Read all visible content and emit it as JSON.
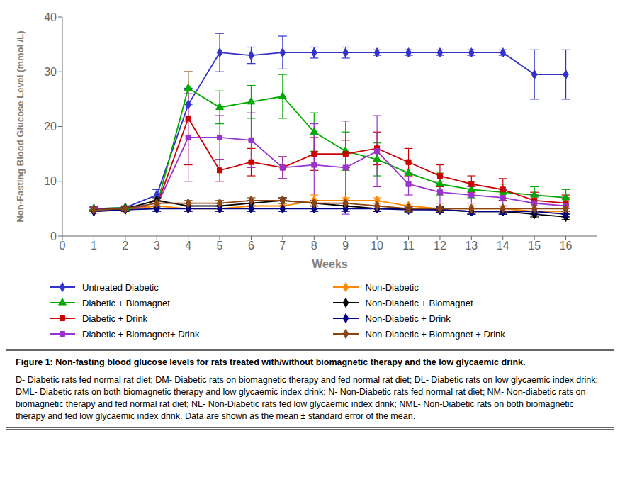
{
  "chart_data": {
    "type": "line",
    "title": "Figure 1: Non-fasting blood glucose levels for rats treated with/without biomagnetic therapy and the low glycaemic drink.",
    "annotations": [
      " D- Diabetic rats fed normal rat diet; DM- Diabetic rats on biomagnetic therapy and fed normal rat diet; DL- Diabetic rats on low glycaemic index drink; DML- Diabetic rats on both biomagnetic therapy and low glycaemic index drink; N- Non-Diabetic rats fed normal rat diet; NM- Non-diabetic rats on biomagnetic therapy and fed normal rat diet; NL- Non-Diabetic rats fed low glycaemic index drink; NML- Non-Diabetic rats on both biomagnetic therapy and fed low glycaemic index drink. Data are shown as the mean ± standard error of the mean."
    ],
    "x_label": "Weeks",
    "y_label": "Non-Fasting Blood Glucose Level (mmol /L)",
    "x": [
      1,
      2,
      3,
      4,
      5,
      6,
      7,
      8,
      9,
      10,
      11,
      12,
      13,
      14,
      15,
      16
    ],
    "xlim": [
      0,
      17
    ],
    "xticks": [
      0,
      1,
      2,
      3,
      4,
      5,
      6,
      7,
      8,
      9,
      10,
      11,
      12,
      13,
      14,
      15,
      16
    ],
    "ylim": [
      0,
      40
    ],
    "yticks": [
      0,
      10,
      20,
      30,
      40
    ],
    "grid": false,
    "series": [
      {
        "name": "Untreated Diabetic",
        "color": "#3333cc",
        "marker": "diamond",
        "values": [
          5.0,
          5.2,
          7.5,
          24.0,
          33.5,
          33.0,
          33.5,
          33.5,
          33.5,
          33.5,
          33.5,
          33.5,
          33.5,
          33.5,
          29.5,
          29.5
        ],
        "yerr": [
          0.3,
          0.3,
          1.0,
          3.0,
          3.5,
          1.5,
          3.0,
          1.0,
          1.0,
          0.5,
          0.5,
          0.5,
          0.5,
          0.5,
          4.5,
          4.5
        ]
      },
      {
        "name": "Diabetic + Biomagnet",
        "color": "#00aa00",
        "marker": "triangle",
        "values": [
          5.0,
          5.2,
          5.5,
          27.0,
          23.5,
          24.5,
          25.5,
          19.0,
          15.5,
          14.0,
          11.5,
          9.5,
          8.5,
          8.0,
          7.5,
          7.0
        ],
        "yerr": [
          0.3,
          0.3,
          0.5,
          3.0,
          3.0,
          3.0,
          4.0,
          3.5,
          3.5,
          3.0,
          2.0,
          2.0,
          1.5,
          1.5,
          1.5,
          1.5
        ]
      },
      {
        "name": "Diabetic + Drink",
        "color": "#cc0000",
        "marker": "square",
        "values": [
          5.0,
          5.0,
          5.5,
          21.5,
          12.0,
          13.5,
          12.5,
          15.0,
          15.0,
          16.0,
          13.5,
          11.0,
          9.5,
          8.5,
          6.5,
          6.0
        ],
        "yerr": [
          0.3,
          0.3,
          0.5,
          8.5,
          2.0,
          2.5,
          2.0,
          3.0,
          2.5,
          3.0,
          2.5,
          2.0,
          1.5,
          2.0,
          1.5,
          1.5
        ]
      },
      {
        "name": "Diabetic + Biomagnet+ Drink",
        "color": "#9933cc",
        "marker": "square",
        "values": [
          5.0,
          5.0,
          5.5,
          18.0,
          18.0,
          17.5,
          12.5,
          13.0,
          12.5,
          15.5,
          9.5,
          8.0,
          7.5,
          7.0,
          6.0,
          5.5
        ],
        "yerr": [
          0.3,
          0.3,
          0.5,
          8.0,
          4.0,
          5.0,
          2.0,
          7.5,
          8.5,
          6.5,
          2.0,
          2.0,
          1.5,
          1.5,
          1.5,
          1.5
        ]
      },
      {
        "name": "Non-Diabetic",
        "color": "#ff8800",
        "marker": "diamond",
        "values": [
          4.5,
          4.8,
          5.5,
          5.0,
          5.0,
          5.5,
          5.5,
          6.5,
          6.5,
          6.5,
          5.5,
          5.0,
          5.0,
          5.0,
          4.5,
          4.5
        ],
        "yerr": [
          0.3,
          0.3,
          0.5,
          0.5,
          0.5,
          0.5,
          0.5,
          1.0,
          0.5,
          0.5,
          0.5,
          0.5,
          0.5,
          0.5,
          0.5,
          0.5
        ]
      },
      {
        "name": "Non-Diabetic + Biomagnet",
        "color": "#000000",
        "marker": "diamond",
        "values": [
          4.8,
          5.0,
          6.5,
          5.5,
          5.5,
          6.0,
          6.5,
          6.0,
          5.5,
          5.0,
          5.0,
          4.8,
          4.5,
          4.5,
          4.0,
          3.5
        ],
        "yerr": [
          0.3,
          0.3,
          0.5,
          0.5,
          0.5,
          0.5,
          0.5,
          0.5,
          0.5,
          0.5,
          0.5,
          0.5,
          0.5,
          0.5,
          0.5,
          0.5
        ]
      },
      {
        "name": "Non-Diabetic + Drink",
        "color": "#000080",
        "marker": "diamond",
        "values": [
          4.5,
          4.8,
          5.0,
          5.0,
          5.0,
          5.0,
          5.0,
          5.0,
          5.0,
          5.0,
          4.8,
          4.8,
          4.5,
          4.5,
          4.5,
          4.0
        ],
        "yerr": [
          0.3,
          0.3,
          0.5,
          0.5,
          0.5,
          0.5,
          0.5,
          0.5,
          0.5,
          0.5,
          0.5,
          0.5,
          0.5,
          0.5,
          0.5,
          0.5
        ]
      },
      {
        "name": "Non-Diabetic + Biomagnet + Drink",
        "color": "#8B4513",
        "marker": "diamond",
        "values": [
          4.8,
          5.0,
          6.0,
          6.0,
          6.0,
          6.5,
          6.5,
          6.0,
          6.0,
          5.5,
          5.0,
          5.0,
          5.0,
          5.0,
          5.0,
          5.0
        ],
        "yerr": [
          0.3,
          0.3,
          0.5,
          0.5,
          0.5,
          0.5,
          0.5,
          0.5,
          0.5,
          0.5,
          0.5,
          0.5,
          0.5,
          0.5,
          0.5,
          0.5
        ]
      }
    ]
  }
}
